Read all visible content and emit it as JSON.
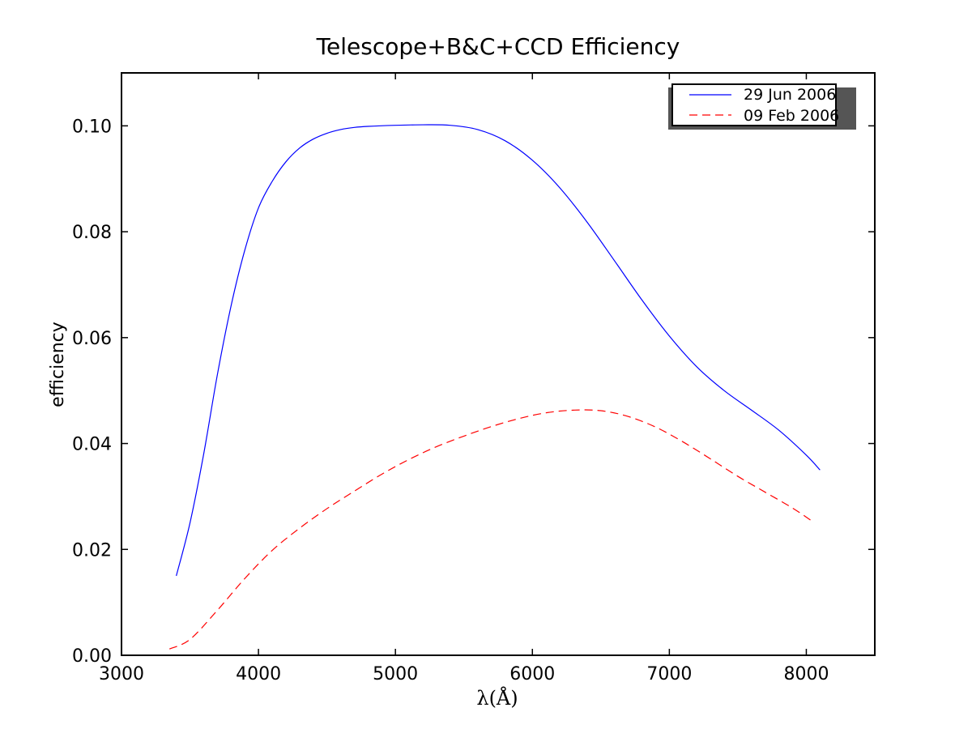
{
  "chart_data": {
    "type": "line",
    "title": "Telescope+B&C+CCD Efficiency",
    "xlabel": "λ(Å)",
    "ylabel": "efficiency",
    "xlim": [
      3000,
      8500
    ],
    "ylim": [
      0.0,
      0.11
    ],
    "xticks": [
      3000,
      4000,
      5000,
      6000,
      7000,
      8000
    ],
    "xtick_labels": [
      "3000",
      "4000",
      "5000",
      "6000",
      "7000",
      "8000"
    ],
    "yticks": [
      0.0,
      0.02,
      0.04,
      0.06,
      0.08,
      0.1
    ],
    "ytick_labels": [
      "0.00",
      "0.02",
      "0.04",
      "0.06",
      "0.08",
      "0.10"
    ],
    "grid": false,
    "legend_position": "top-right",
    "series": [
      {
        "name": "29 Jun 2006",
        "color": "#0000ff",
        "style": "solid",
        "x": [
          3400,
          3500,
          3600,
          3700,
          3800,
          3900,
          4000,
          4100,
          4200,
          4300,
          4400,
          4500,
          4600,
          4700,
          4800,
          5000,
          5200,
          5400,
          5600,
          5800,
          6000,
          6200,
          6400,
          6600,
          6800,
          7000,
          7200,
          7400,
          7600,
          7800,
          8000,
          8100
        ],
        "y": [
          0.015,
          0.025,
          0.038,
          0.053,
          0.066,
          0.0765,
          0.0845,
          0.0895,
          0.0932,
          0.0958,
          0.0975,
          0.0986,
          0.0993,
          0.0997,
          0.0999,
          0.1001,
          0.1002,
          0.1001,
          0.0993,
          0.0972,
          0.0935,
          0.0883,
          0.0818,
          0.0745,
          0.0671,
          0.0603,
          0.0545,
          0.05,
          0.0463,
          0.0425,
          0.0378,
          0.035
        ]
      },
      {
        "name": "09 Feb 2006",
        "color": "#ff0000",
        "style": "dashed",
        "x": [
          3350,
          3500,
          3700,
          3900,
          4100,
          4300,
          4500,
          4700,
          4900,
          5100,
          5300,
          5500,
          5700,
          5900,
          6100,
          6300,
          6500,
          6700,
          6900,
          7100,
          7300,
          7500,
          7700,
          7900,
          8050
        ],
        "y": [
          0.0012,
          0.003,
          0.0085,
          0.0145,
          0.0198,
          0.024,
          0.0277,
          0.031,
          0.0342,
          0.037,
          0.0394,
          0.0414,
          0.0432,
          0.0447,
          0.0458,
          0.0463,
          0.0462,
          0.0451,
          0.0431,
          0.0403,
          0.0371,
          0.0338,
          0.0308,
          0.0278,
          0.0252
        ]
      }
    ]
  }
}
